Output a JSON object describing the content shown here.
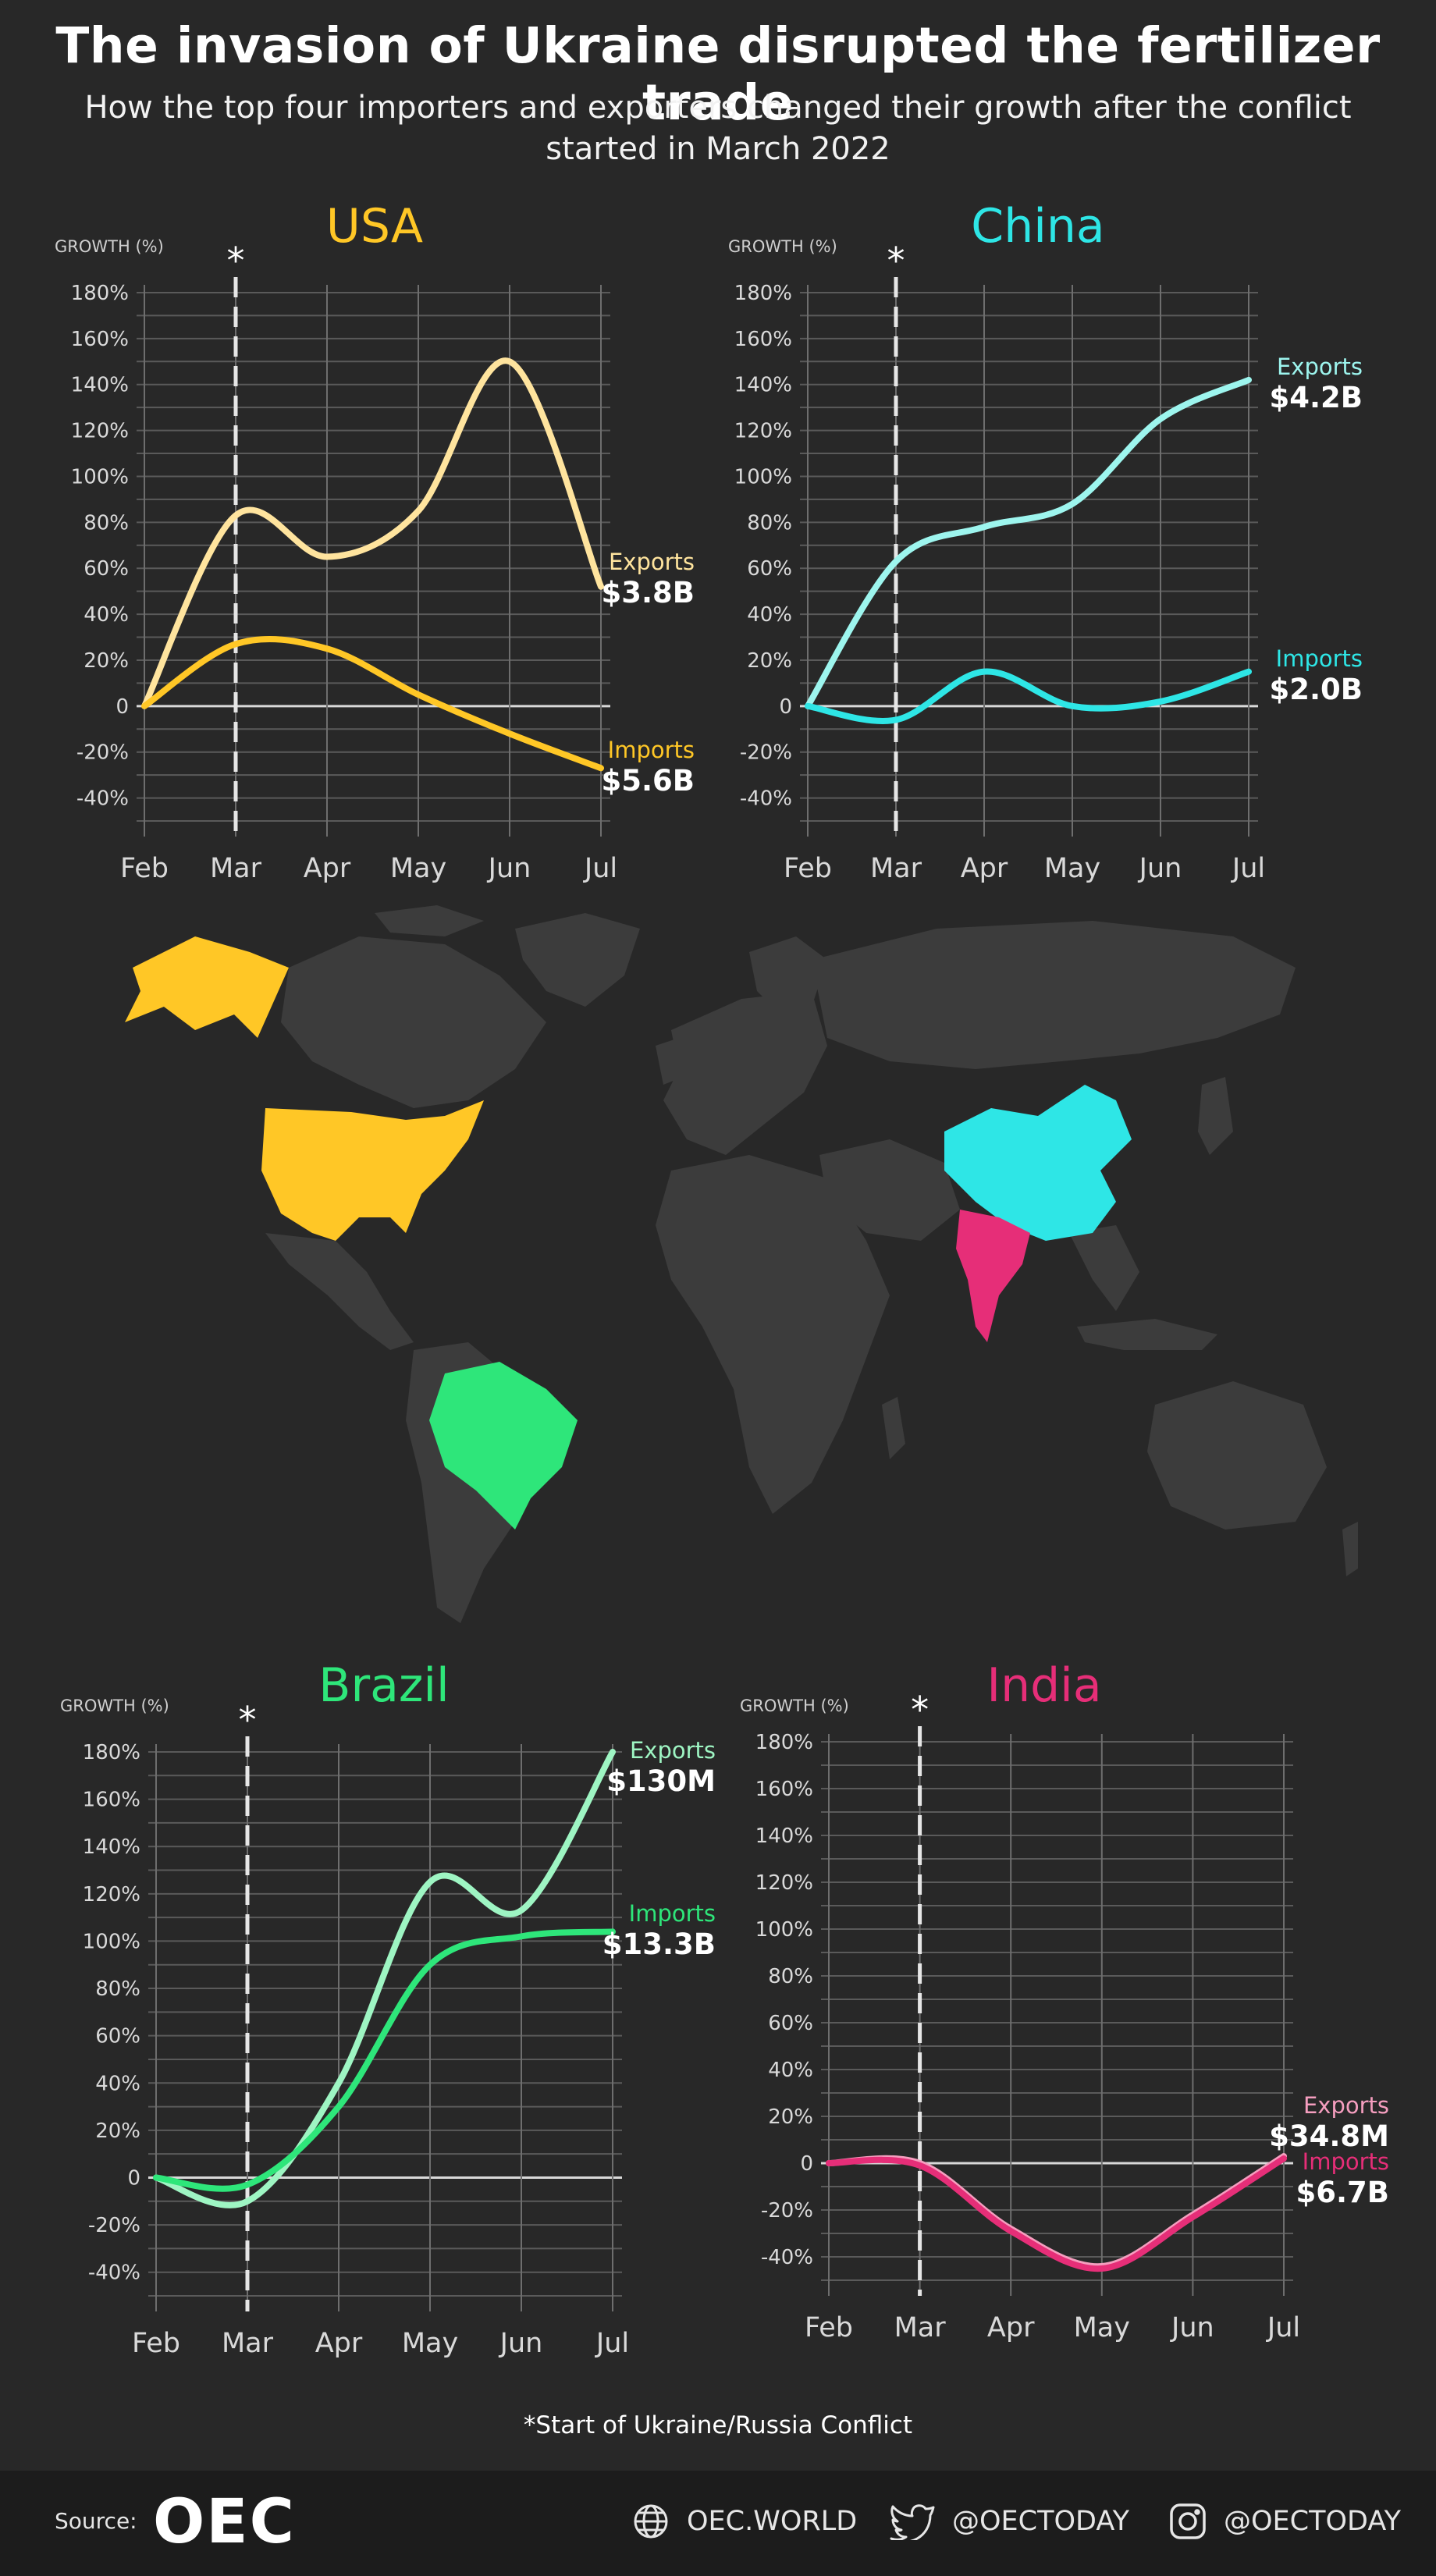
{
  "title": "The invasion of Ukraine disrupted the fertilizer trade",
  "subtitle": "How the top four importers and exporters changed their growth after the conflict started in March 2022",
  "footnote": "*Start of Ukraine/Russia Conflict",
  "footer": {
    "source_label": "Source:",
    "logo_text": "OEC",
    "website": "OEC.WORLD",
    "twitter": "@OECTODAY",
    "instagram": "@OECTODAY",
    "icons": [
      "globe-icon",
      "twitter-icon",
      "instagram-icon"
    ]
  },
  "map": {
    "highlighted": [
      "USA",
      "China",
      "Brazil",
      "India"
    ],
    "land_color": "#3c3c3c"
  },
  "chart_data": [
    {
      "type": "line",
      "title": "USA",
      "title_color": "#ffc726",
      "ylabel": "GROWTH (%)",
      "x": [
        "Feb",
        "Mar",
        "Apr",
        "May",
        "Jun",
        "Jul"
      ],
      "yticks": [
        "180%",
        "160%",
        "140%",
        "120%",
        "100%",
        "80%",
        "60%",
        "40%",
        "20%",
        "0",
        "-20%",
        "-40%"
      ],
      "ylim": [
        -50,
        180
      ],
      "marker": {
        "x": "Mar",
        "label": "*"
      },
      "grid": true,
      "series": [
        {
          "name": "Exports",
          "total": "$3.8B",
          "color": "#ffe49e",
          "values": [
            0,
            83,
            65,
            85,
            150,
            52
          ]
        },
        {
          "name": "Imports",
          "total": "$5.6B",
          "color": "#ffc726",
          "values": [
            0,
            27,
            25,
            5,
            -12,
            -27
          ]
        }
      ]
    },
    {
      "type": "line",
      "title": "China",
      "title_color": "#2ee6e6",
      "ylabel": "GROWTH (%)",
      "x": [
        "Feb",
        "Mar",
        "Apr",
        "May",
        "Jun",
        "Jul"
      ],
      "yticks": [
        "180%",
        "160%",
        "140%",
        "120%",
        "100%",
        "80%",
        "60%",
        "40%",
        "20%",
        "0",
        "-20%",
        "-40%"
      ],
      "ylim": [
        -50,
        180
      ],
      "marker": {
        "x": "Mar",
        "label": "*"
      },
      "grid": true,
      "series": [
        {
          "name": "Exports",
          "total": "$4.2B",
          "color": "#9df5ee",
          "values": [
            0,
            63,
            78,
            88,
            125,
            142
          ]
        },
        {
          "name": "Imports",
          "total": "$2.0B",
          "color": "#2ee6e6",
          "values": [
            0,
            -6,
            15,
            0,
            2,
            15
          ]
        }
      ]
    },
    {
      "type": "line",
      "title": "Brazil",
      "title_color": "#2ee67a",
      "ylabel": "GROWTH (%)",
      "x": [
        "Feb",
        "Mar",
        "Apr",
        "May",
        "Jun",
        "Jul"
      ],
      "yticks": [
        "180%",
        "160%",
        "140%",
        "120%",
        "100%",
        "80%",
        "60%",
        "40%",
        "20%",
        "0",
        "-20%",
        "-40%"
      ],
      "ylim": [
        -50,
        180
      ],
      "marker": {
        "x": "Mar",
        "label": "*"
      },
      "grid": true,
      "series": [
        {
          "name": "Exports",
          "total": "$130M",
          "color": "#9ef5c3",
          "values": [
            0,
            -10,
            40,
            125,
            113,
            180
          ]
        },
        {
          "name": "Imports",
          "total": "$13.3B",
          "color": "#2ee67a",
          "values": [
            0,
            -3,
            30,
            90,
            102,
            104
          ]
        }
      ]
    },
    {
      "type": "line",
      "title": "India",
      "title_color": "#e62e78",
      "ylabel": "GROWTH (%)",
      "x": [
        "Feb",
        "Mar",
        "Apr",
        "May",
        "Jun",
        "Jul"
      ],
      "yticks": [
        "180%",
        "160%",
        "140%",
        "120%",
        "100%",
        "80%",
        "60%",
        "40%",
        "20%",
        "0",
        "-20%",
        "-40%"
      ],
      "ylim": [
        -50,
        180
      ],
      "marker": {
        "x": "Mar",
        "label": "*"
      },
      "grid": true,
      "series": [
        {
          "name": "Exports",
          "total": "$34.8M",
          "color": "#f59ebf",
          "values": [
            0,
            0,
            -28,
            -44,
            -22,
            3
          ]
        },
        {
          "name": "Imports",
          "total": "$6.7B",
          "color": "#e62e78",
          "values": [
            0,
            -1,
            -29,
            -45,
            -23,
            2
          ]
        }
      ]
    }
  ]
}
